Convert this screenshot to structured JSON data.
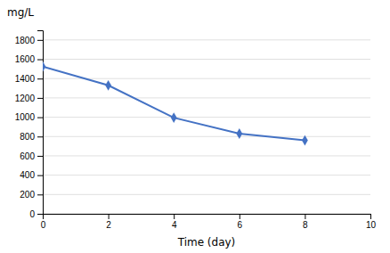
{
  "chart_data": {
    "type": "line",
    "x": [
      0,
      2,
      4,
      6,
      8
    ],
    "values": [
      1525,
      1330,
      995,
      830,
      760
    ],
    "color": "#4472c4",
    "marker": "diamond",
    "xlabel": "Time (day)",
    "ylabel": "mg/L",
    "xlim": [
      0,
      10
    ],
    "ylim": [
      0,
      1900
    ],
    "xticks": [
      0,
      2,
      4,
      6,
      8,
      10
    ],
    "yticks": [
      0,
      200,
      400,
      600,
      800,
      1000,
      1200,
      1400,
      1600,
      1800
    ],
    "grid": true
  }
}
